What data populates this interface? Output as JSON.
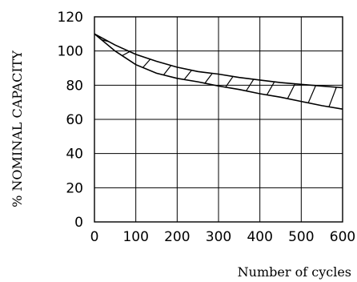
{
  "chart_data": {
    "type": "area",
    "xlabel": "Number of cycles",
    "ylabel": "% NOMINAL CAPACITY",
    "xlim": [
      0,
      600
    ],
    "ylim": [
      0,
      120
    ],
    "x_ticks": [
      0,
      100,
      200,
      300,
      400,
      500,
      600
    ],
    "y_ticks": [
      0,
      20,
      40,
      60,
      80,
      100,
      120
    ],
    "grid": true,
    "x": [
      0,
      50,
      100,
      150,
      200,
      250,
      300,
      350,
      400,
      450,
      500,
      550,
      600
    ],
    "series": [
      {
        "values": [
          110,
          103.5,
          98,
          94,
          90.5,
          88,
          86.5,
          84.5,
          83,
          81.5,
          80.5,
          79.5,
          78.5
        ]
      },
      {
        "values": [
          110,
          100,
          92,
          87,
          84,
          82,
          79.5,
          77.5,
          75,
          73,
          70.5,
          68,
          66
        ]
      }
    ],
    "fill_pattern": "hatch"
  }
}
